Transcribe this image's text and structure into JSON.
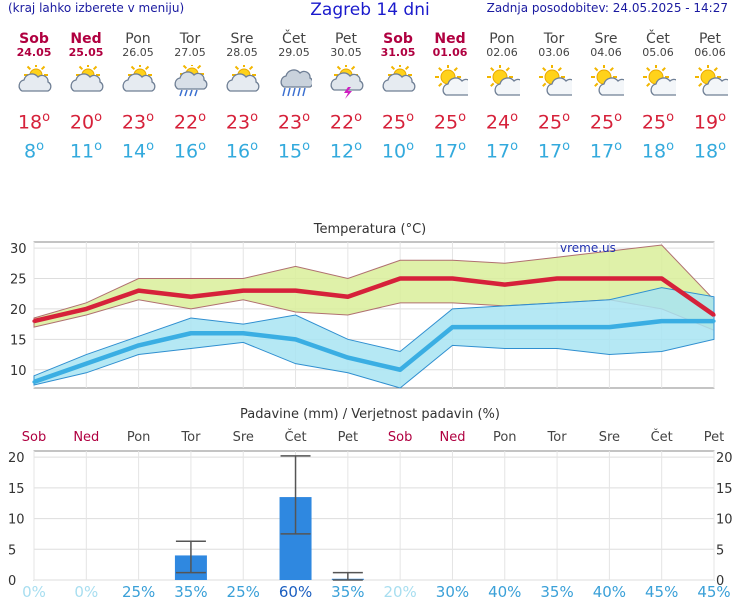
{
  "header": {
    "left_note": "(kraj lahko izberete v meniju)",
    "title": "Zagreb 14 dni",
    "updated": "Zadnja posodobitev: 24.05.2025 - 14:27"
  },
  "days": [
    {
      "name": "Sob",
      "date": "24.05",
      "weekend": true,
      "icon": "partly-cloudy-icon",
      "tmax": "18",
      "tmin": "8"
    },
    {
      "name": "Ned",
      "date": "25.05",
      "weekend": true,
      "icon": "partly-cloudy-icon",
      "tmax": "20",
      "tmin": "11"
    },
    {
      "name": "Pon",
      "date": "26.05",
      "weekend": false,
      "icon": "partly-cloudy-icon",
      "tmax": "23",
      "tmin": "14"
    },
    {
      "name": "Tor",
      "date": "27.05",
      "weekend": false,
      "icon": "sun-cloud-rain-icon",
      "tmax": "22",
      "tmin": "16"
    },
    {
      "name": "Sre",
      "date": "28.05",
      "weekend": false,
      "icon": "partly-cloudy-icon",
      "tmax": "23",
      "tmin": "16"
    },
    {
      "name": "Čet",
      "date": "29.05",
      "weekend": false,
      "icon": "cloud-rain-icon",
      "tmax": "23",
      "tmin": "15"
    },
    {
      "name": "Pet",
      "date": "30.05",
      "weekend": false,
      "icon": "sun-cloud-storm-icon",
      "tmax": "22",
      "tmin": "12"
    },
    {
      "name": "Sob",
      "date": "31.05",
      "weekend": true,
      "icon": "partly-cloudy-icon",
      "tmax": "25",
      "tmin": "10"
    },
    {
      "name": "Ned",
      "date": "01.06",
      "weekend": true,
      "icon": "sunny-cloud-icon",
      "tmax": "25",
      "tmin": "17"
    },
    {
      "name": "Pon",
      "date": "02.06",
      "weekend": false,
      "icon": "sunny-cloud-icon",
      "tmax": "24",
      "tmin": "17"
    },
    {
      "name": "Tor",
      "date": "03.06",
      "weekend": false,
      "icon": "sunny-cloud-icon",
      "tmax": "25",
      "tmin": "17"
    },
    {
      "name": "Sre",
      "date": "04.06",
      "weekend": false,
      "icon": "sunny-cloud-icon",
      "tmax": "25",
      "tmin": "17"
    },
    {
      "name": "Čet",
      "date": "05.06",
      "weekend": false,
      "icon": "sunny-cloud-icon",
      "tmax": "25",
      "tmin": "18"
    },
    {
      "name": "Pet",
      "date": "06.06",
      "weekend": false,
      "icon": "sunny-cloud-icon",
      "tmax": "19",
      "tmin": "18"
    }
  ],
  "degree_symbol": "o",
  "chart_data": [
    {
      "type": "line",
      "title": "Temperatura (°C)",
      "watermark": "vreme.us",
      "ylim": [
        7,
        31
      ],
      "yticks": [
        10,
        15,
        20,
        25,
        30
      ],
      "grid": true,
      "x": [
        1,
        2,
        3,
        4,
        5,
        6,
        7,
        8,
        9,
        10,
        11,
        12,
        13,
        14
      ],
      "series": [
        {
          "role": "max",
          "color": "#d6213a",
          "values": [
            18,
            20,
            23,
            22,
            23,
            23,
            22,
            25,
            25,
            24,
            25,
            25,
            25,
            19
          ]
        },
        {
          "role": "max_band_upper",
          "color": "#d9ee9a",
          "values": [
            18.5,
            21,
            25,
            25,
            25,
            27,
            25,
            28,
            28,
            27.5,
            28.5,
            29.5,
            30.5,
            21.5
          ]
        },
        {
          "role": "max_band_lower",
          "color": "#d9ee9a",
          "values": [
            17,
            19,
            21.5,
            20,
            21.5,
            19.5,
            19,
            21,
            21,
            20.5,
            21,
            21.5,
            20,
            16.5
          ]
        },
        {
          "role": "min",
          "color": "#3aaee3",
          "values": [
            8,
            11,
            14,
            16,
            16,
            15,
            12,
            10,
            17,
            17,
            17,
            17,
            18,
            18
          ]
        },
        {
          "role": "min_band_upper",
          "color": "#a8e4f2",
          "values": [
            9,
            12.5,
            15.5,
            18.5,
            17.5,
            19,
            15,
            13,
            20,
            20.5,
            21,
            21.5,
            23.5,
            22
          ]
        },
        {
          "role": "min_band_lower",
          "color": "#a8e4f2",
          "values": [
            7.5,
            9.5,
            12.5,
            13.5,
            14.5,
            11,
            9.5,
            7,
            14,
            13.5,
            13.5,
            12.5,
            13,
            15
          ]
        }
      ]
    },
    {
      "type": "bar",
      "title": "Padavine (mm) / Verjetnost padavin (%)",
      "categories": [
        "Sob",
        "Ned",
        "Pon",
        "Tor",
        "Sre",
        "Čet",
        "Pet",
        "Sob",
        "Ned",
        "Pon",
        "Tor",
        "Sre",
        "Čet",
        "Pet"
      ],
      "weekend": [
        true,
        true,
        false,
        false,
        false,
        false,
        false,
        true,
        true,
        false,
        false,
        false,
        false,
        false
      ],
      "ylim": [
        0,
        21
      ],
      "yticks": [
        0,
        5,
        10,
        15,
        20
      ],
      "grid": true,
      "bar_color": "#2f88e0",
      "values": [
        0,
        0,
        0,
        4,
        0,
        13.5,
        0.2,
        0,
        0,
        0,
        0,
        0,
        0,
        0
      ],
      "error_low": [
        null,
        null,
        null,
        1.2,
        null,
        7.5,
        0,
        null,
        null,
        null,
        null,
        null,
        null,
        null
      ],
      "error_high": [
        null,
        null,
        null,
        6.3,
        null,
        20.2,
        1.2,
        null,
        null,
        null,
        null,
        null,
        null,
        null
      ],
      "probability": [
        "0%",
        "0%",
        "25%",
        "35%",
        "25%",
        "60%",
        "35%",
        "20%",
        "30%",
        "40%",
        "35%",
        "40%",
        "45%",
        "45%"
      ],
      "probability_colors": [
        "#a8def0",
        "#a8def0",
        "#3aa0d8",
        "#3aa0d8",
        "#3aa0d8",
        "#1c5fc0",
        "#3aa0d8",
        "#a8def0",
        "#3aa0d8",
        "#3aa0d8",
        "#3aa0d8",
        "#3aa0d8",
        "#3aa0d8",
        "#3aa0d8"
      ]
    }
  ]
}
